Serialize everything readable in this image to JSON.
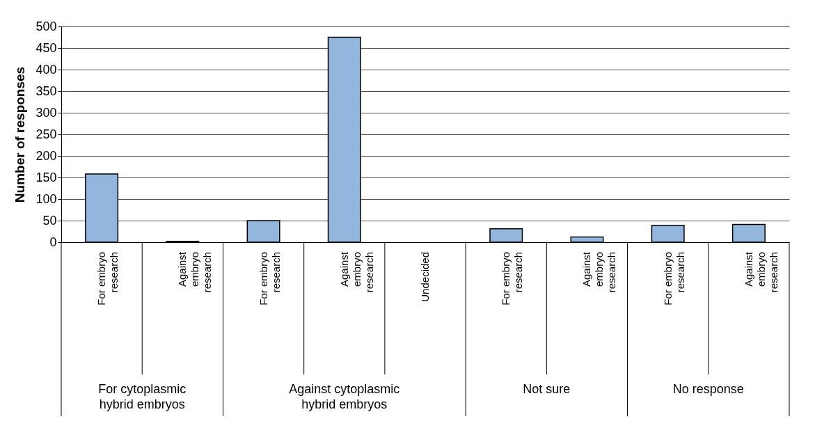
{
  "chart_data": {
    "type": "bar",
    "ylabel": "Number of responses",
    "categories": [
      "For embryo research",
      "Against embryo research",
      "For embryo research",
      "Against embryo research",
      "Undecided",
      "For embryo research",
      "Against embryo research",
      "For embryo research",
      "Against embryo research"
    ],
    "values": [
      158,
      2,
      50,
      475,
      null,
      31,
      12,
      39,
      41
    ],
    "color": "#93b6dc",
    "annotations": [
      "For cytoplasmic hybrid embryos",
      "Against cytoplasmic hybrid embryos",
      "Not sure",
      "No response"
    ],
    "ylim": [
      0,
      500
    ],
    "yticks": [
      0,
      50,
      100,
      150,
      200,
      250,
      300,
      350,
      400,
      450,
      500
    ],
    "grid": "y"
  }
}
